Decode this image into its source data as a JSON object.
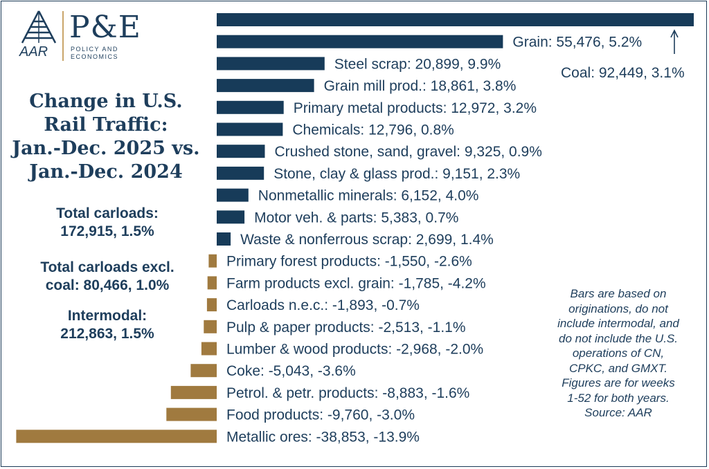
{
  "logo": {
    "left_text": "AAR",
    "right_text": "P&E",
    "subtitle_lines": [
      "POLICY AND",
      "ECONOMICS"
    ]
  },
  "title_lines": [
    "Change in U.S.",
    "Rail Traffic:",
    "Jan.-Dec. 2025 vs.",
    "Jan.-Dec. 2024"
  ],
  "stats": {
    "total_carloads": [
      "Total carloads:",
      "172,915, 1.5%"
    ],
    "total_excl_coal": [
      "Total carloads excl.",
      "coal: 80,466, 1.0%"
    ],
    "intermodal": [
      "Intermodal:",
      "212,863, 1.5%"
    ]
  },
  "note_lines": [
    "Bars are based on",
    "originations, do not",
    "include intermodal, and",
    "do not include the U.S.",
    "operations of CN,",
    "CPKC, and GMXT.",
    "Figures are for weeks",
    "1-52 for both years.",
    "Source: AAR"
  ],
  "colors": {
    "positive": "#173b59",
    "negative": "#a07a3f",
    "text": "#1e3e5c"
  },
  "chart_data": {
    "type": "bar",
    "orientation": "horizontal",
    "title": "Change in U.S. Rail Traffic: Jan.-Dec. 2025 vs. Jan.-Dec. 2024",
    "xlabel": "",
    "ylabel": "",
    "categories": [
      "Coal",
      "Grain",
      "Steel scrap",
      "Grain mill prod.",
      "Primary metal products",
      "Chemicals",
      "Crushed stone, sand, gravel",
      "Stone, clay & glass prod.",
      "Nonmetallic minerals",
      "Motor veh. & parts",
      "Waste & nonferrous scrap",
      "Primary forest products",
      "Farm products excl. grain",
      "Carloads n.e.c.",
      "Pulp & paper products",
      "Lumber & wood products",
      "Coke",
      "Petrol. & petr. products",
      "Food products",
      "Metallic ores"
    ],
    "values": [
      92449,
      55476,
      20899,
      18861,
      12972,
      12796,
      9325,
      9151,
      6152,
      5383,
      2699,
      -1550,
      -1785,
      -1893,
      -2513,
      -2968,
      -5043,
      -8883,
      -9760,
      -38853
    ],
    "labels": [
      "Coal: 92,449, 3.1%",
      "Grain: 55,476, 5.2%",
      "Steel scrap: 20,899, 9.9%",
      "Grain mill prod.: 18,861, 3.8%",
      "Primary metal products: 12,972, 3.2%",
      "Chemicals: 12,796, 0.8%",
      "Crushed stone, sand, gravel: 9,325, 0.9%",
      "Stone, clay & glass prod.: 9,151, 2.3%",
      "Nonmetallic minerals: 6,152, 4.0%",
      "Motor veh. & parts: 5,383, 0.7%",
      "Waste & nonferrous scrap: 2,699, 1.4%",
      "Primary forest products: -1,550, -2.6%",
      "Farm products excl. grain: -1,785, -4.2%",
      "Carloads n.e.c.: -1,893, -0.7%",
      "Pulp & paper products: -2,513, -1.1%",
      "Lumber & wood products: -2,968, -2.0%",
      "Coke: -5,043, -3.6%",
      "Petrol. & petr. products: -8,883, -1.6%",
      "Food products: -9,760, -3.0%",
      "Metallic ores: -38,853, -13.9%"
    ],
    "xlim": [
      -38853,
      92449
    ],
    "grid": false,
    "legend": "none"
  }
}
